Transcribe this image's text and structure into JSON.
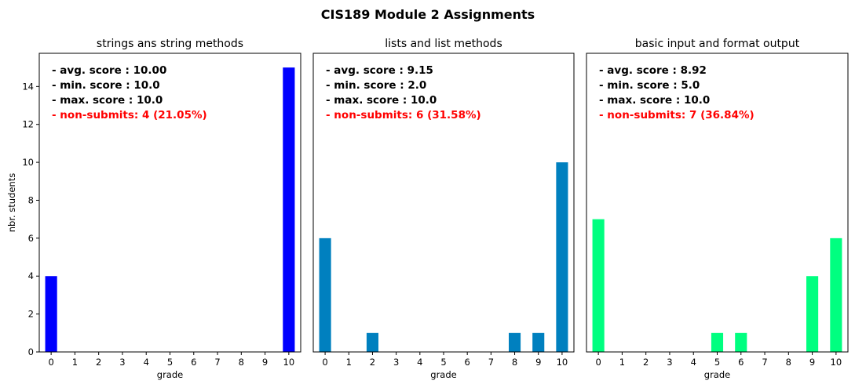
{
  "chart_data": {
    "title": "CIS189 Module 2 Assignments",
    "type": "bar",
    "categories": [
      "0",
      "1",
      "2",
      "3",
      "4",
      "5",
      "6",
      "7",
      "8",
      "9",
      "10"
    ],
    "xlabel": "grade",
    "ylabel": "nbr. students",
    "ylim": [
      0,
      15.75
    ],
    "yticks": [
      "0",
      "2",
      "4",
      "6",
      "8",
      "10",
      "12",
      "14"
    ],
    "grid": false,
    "panels": [
      {
        "title": "strings ans string methods",
        "color": "#0000ff",
        "values": [
          4,
          0,
          0,
          0,
          0,
          0,
          0,
          0,
          0,
          0,
          15
        ],
        "stats": [
          "- avg. score : 10.00",
          "- min. score : 10.0",
          "- max. score : 10.0"
        ],
        "non_submits": "- non-submits: 4 (21.05%)"
      },
      {
        "title": "lists and list methods",
        "color": "#0080bf",
        "values": [
          6,
          0,
          1,
          0,
          0,
          0,
          0,
          0,
          1,
          1,
          10
        ],
        "stats": [
          "- avg. score : 9.15",
          "- min. score : 2.0",
          "- max. score : 10.0"
        ],
        "non_submits": "- non-submits: 6 (31.58%)"
      },
      {
        "title": "basic input and format output",
        "color": "#00ff80",
        "values": [
          7,
          0,
          0,
          0,
          0,
          1,
          1,
          0,
          0,
          4,
          6
        ],
        "stats": [
          "- avg. score : 8.92",
          "- min. score : 5.0",
          "- max. score : 10.0"
        ],
        "non_submits": "- non-submits: 7 (36.84%)"
      }
    ],
    "highlight_color": "#ff0000"
  }
}
